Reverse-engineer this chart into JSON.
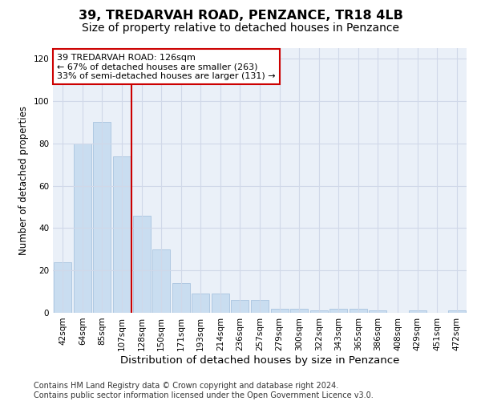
{
  "title": "39, TREDARVAH ROAD, PENZANCE, TR18 4LB",
  "subtitle": "Size of property relative to detached houses in Penzance",
  "xlabel": "Distribution of detached houses by size in Penzance",
  "ylabel": "Number of detached properties",
  "bar_values": [
    24,
    80,
    90,
    74,
    46,
    30,
    14,
    9,
    9,
    6,
    6,
    2,
    2,
    1,
    2,
    2,
    1,
    0,
    1,
    0,
    1
  ],
  "bin_labels": [
    "42sqm",
    "64sqm",
    "85sqm",
    "107sqm",
    "128sqm",
    "150sqm",
    "171sqm",
    "193sqm",
    "214sqm",
    "236sqm",
    "257sqm",
    "279sqm",
    "300sqm",
    "322sqm",
    "343sqm",
    "365sqm",
    "386sqm",
    "408sqm",
    "429sqm",
    "451sqm",
    "472sqm"
  ],
  "bar_color": "#c9ddf0",
  "bar_edge_color": "#a8c4df",
  "property_bin_index": 4,
  "annotation_line1": "39 TREDARVAH ROAD: 126sqm",
  "annotation_line2": "← 67% of detached houses are smaller (263)",
  "annotation_line3": "33% of semi-detached houses are larger (131) →",
  "annotation_box_color": "#ffffff",
  "annotation_box_edge": "#cc0000",
  "vline_color": "#cc0000",
  "ylim": [
    0,
    125
  ],
  "yticks": [
    0,
    20,
    40,
    60,
    80,
    100,
    120
  ],
  "grid_color": "#d0d8e8",
  "bg_color": "#eaf0f8",
  "footer_text": "Contains HM Land Registry data © Crown copyright and database right 2024.\nContains public sector information licensed under the Open Government Licence v3.0.",
  "title_fontsize": 11.5,
  "subtitle_fontsize": 10,
  "xlabel_fontsize": 9.5,
  "ylabel_fontsize": 8.5,
  "tick_fontsize": 7.5,
  "annotation_fontsize": 8,
  "footer_fontsize": 7
}
